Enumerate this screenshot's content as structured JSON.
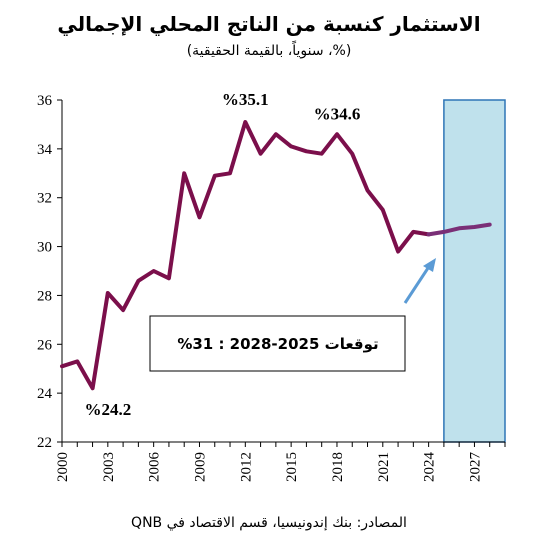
{
  "chart_data": {
    "type": "line",
    "title": "الاستثمار كنسبة من الناتج المحلي الإجمالي",
    "subtitle": "(%، سنوياً، بالقيمة الحقيقية)",
    "source": "المصادر: بنك إندونيسيا، قسم الاقتصاد في QNB",
    "ylim": [
      22,
      36
    ],
    "yticks": [
      "22",
      "24",
      "26",
      "28",
      "30",
      "32",
      "34",
      "36"
    ],
    "xlim": [
      2000,
      2029
    ],
    "xticks": [
      "2000",
      "2003",
      "2006",
      "2009",
      "2012",
      "2015",
      "2018",
      "2021",
      "2024",
      "2027"
    ],
    "line_color": "#7b0f4b",
    "forecast_color": "#7a2f77",
    "shade_color": "#bfe1ec",
    "shade_range": [
      2025,
      2029
    ],
    "series": [
      {
        "x": [
          2000,
          2001,
          2002,
          2003,
          2004,
          2005,
          2006,
          2007,
          2008,
          2009,
          2010,
          2011,
          2012,
          2013,
          2014,
          2015,
          2016,
          2017,
          2018,
          2019,
          2020,
          2021,
          2022,
          2023,
          2024
        ],
        "y": [
          25.1,
          25.3,
          24.2,
          28.1,
          27.4,
          28.6,
          29.0,
          28.7,
          33.0,
          31.2,
          32.9,
          33.0,
          35.1,
          33.8,
          34.6,
          34.1,
          33.9,
          33.8,
          34.6,
          33.8,
          32.3,
          31.5,
          29.8,
          30.6,
          30.5
        ]
      },
      {
        "x": [
          2024,
          2025,
          2026,
          2027,
          2028
        ],
        "y": [
          30.5,
          30.6,
          30.75,
          30.8,
          30.9
        ]
      }
    ],
    "annotations": [
      {
        "text": "%24.2",
        "x": 2003,
        "y": 23.1
      },
      {
        "text": "%35.1",
        "x": 2012,
        "y": 35.8
      },
      {
        "text": "%34.6",
        "x": 2018,
        "y": 35.2
      }
    ],
    "callout": "توقعات 2025-2028 : 31%"
  }
}
